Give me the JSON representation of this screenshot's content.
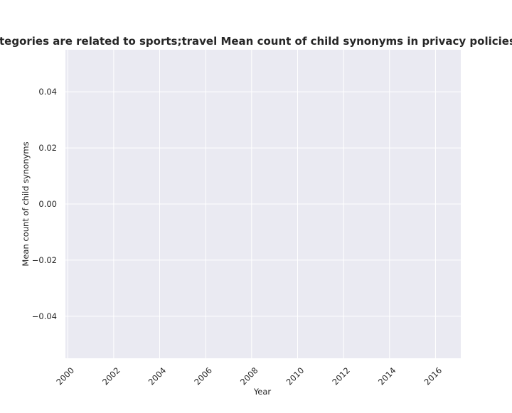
{
  "chart_data": {
    "type": "line",
    "title": "When categories are related to sports;travel Mean count of child synonyms in privacy policies by year",
    "xlabel": "Year",
    "ylabel": "Mean count of child synonyms",
    "x_ticks": [
      "2000",
      "2002",
      "2004",
      "2006",
      "2008",
      "2010",
      "2012",
      "2014",
      "2016"
    ],
    "y_ticks": [
      "0.04",
      "0.02",
      "0.00",
      "−0.02",
      "−0.04"
    ],
    "xlim": [
      1999.9,
      2017.1
    ],
    "ylim": [
      -0.055,
      0.055
    ],
    "series": [],
    "grid": true,
    "style": {
      "axes_background": "#eaeaf2",
      "grid_color": "#ffffff",
      "text_color": "#262626"
    }
  }
}
